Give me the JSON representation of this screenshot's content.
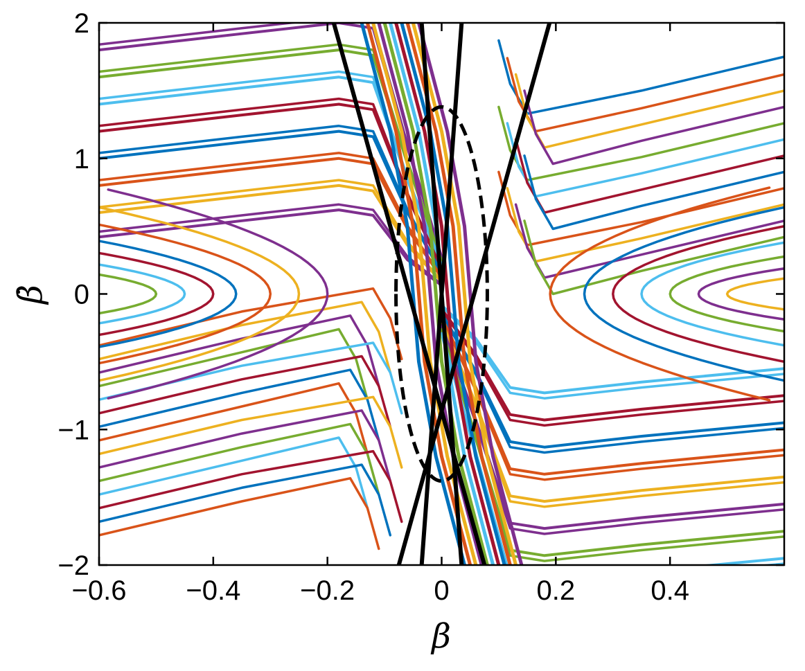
{
  "chart_data": {
    "type": "line",
    "title": "",
    "xlabel": "β",
    "ylabel": "β̇",
    "xlim": [
      -0.6,
      0.6
    ],
    "ylim": [
      -2,
      2
    ],
    "xticks": [
      -0.6,
      -0.4,
      -0.2,
      0,
      0.2,
      0.4
    ],
    "xtick_labels": [
      "−0.6",
      "−0.4",
      "−0.2",
      "0",
      "0.2",
      "0.4"
    ],
    "yticks": [
      -2,
      -1,
      0,
      1,
      2
    ],
    "ytick_labels": [
      "−2",
      "−1",
      "0",
      "1",
      "2"
    ],
    "grid": false,
    "legend": "none",
    "palette": [
      "#0072BD",
      "#D95319",
      "#EDB120",
      "#7E2F8E",
      "#77AC30",
      "#4DBEEE",
      "#A2142F"
    ],
    "boundary_lines": [
      {
        "x": [
          -0.189,
          0.075
        ],
        "y": [
          2,
          -2
        ]
      },
      {
        "x": [
          -0.075,
          0.189
        ],
        "y": [
          -2,
          2
        ]
      },
      {
        "x": [
          -0.035,
          0.035
        ],
        "y": [
          2,
          -2
        ]
      },
      {
        "x": [
          -0.035,
          0.035
        ],
        "y": [
          -2,
          2
        ]
      }
    ],
    "dashed_ellipse": {
      "center": [
        0,
        0
      ],
      "rx": 0.08,
      "ry": 1.38
    },
    "trajectory_families": {
      "left_upper_start_y": [
        1.8,
        1.6,
        1.4,
        1.2,
        1.0,
        0.8,
        0.6,
        0.42
      ],
      "right_lower_start_y": [
        -0.55,
        -0.75,
        -0.95,
        -1.15,
        -1.35,
        -1.55,
        -1.75,
        -1.95
      ],
      "left_lower_start_y": [
        -0.38,
        -0.48,
        -0.58,
        -0.68,
        -0.78,
        -0.88,
        -0.98,
        -1.08,
        -1.18,
        -1.28,
        -1.38,
        -1.48,
        -1.58,
        -1.68,
        -1.78
      ],
      "right_upper_start_y": [
        1.75,
        1.62,
        1.5,
        1.38,
        1.26,
        1.14,
        1.02,
        0.9,
        0.78,
        0.66,
        0.54,
        0.42
      ],
      "left_spiral_tip_x": [
        -0.5,
        -0.45,
        -0.4,
        -0.36,
        -0.3,
        -0.25,
        -0.2
      ],
      "right_spiral_tip_x": [
        0.5,
        0.45,
        0.4,
        0.35,
        0.3,
        0.25,
        0.19
      ],
      "central_band_offsets": [
        -0.05,
        -0.04,
        -0.03,
        -0.02,
        -0.01,
        0,
        0.01,
        0.02,
        0.03,
        0.04,
        0.05
      ]
    }
  }
}
